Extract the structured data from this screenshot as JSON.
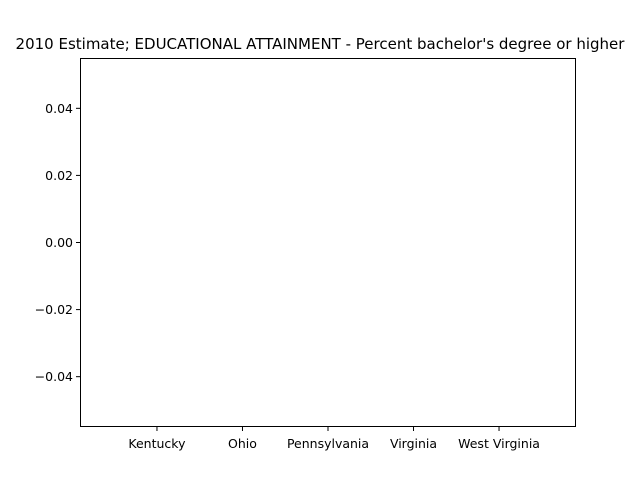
{
  "chart_data": {
    "type": "bar",
    "title": "2010 Estimate; EDUCATIONAL ATTAINMENT - Percent bachelor's degree or higher",
    "xlabel": "",
    "ylabel": "",
    "categories": [
      "Kentucky",
      "Ohio",
      "Pennsylvania",
      "Virginia",
      "West Virginia"
    ],
    "values": [
      null,
      null,
      null,
      null,
      null
    ],
    "ylim": [
      -0.055,
      0.055
    ],
    "yticks": [
      -0.04,
      -0.02,
      0.0,
      0.02,
      0.04
    ],
    "ytick_labels": [
      "−0.04",
      "−0.02",
      "0.00",
      "0.02",
      "0.04"
    ],
    "grid": false,
    "legend": "none"
  }
}
